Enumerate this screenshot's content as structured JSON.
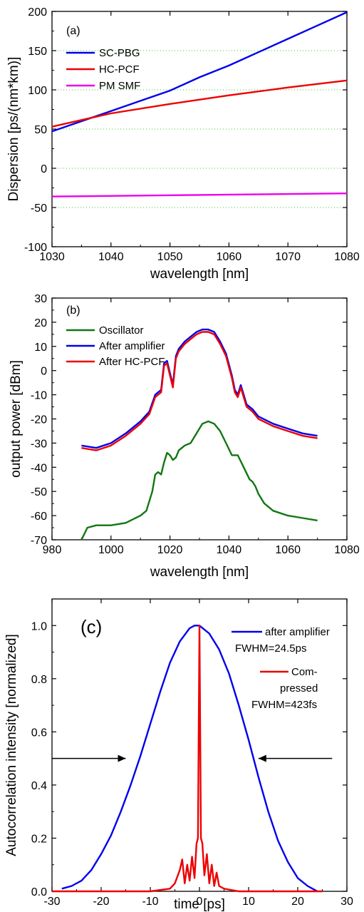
{
  "chart_data": [
    {
      "type": "line",
      "panel_label": "(a)",
      "xlabel": "wavelength [nm]",
      "ylabel": "Dispersion [ps/(nm*km)]",
      "xlim": [
        1030,
        1080
      ],
      "ylim": [
        -100,
        200
      ],
      "x_ticks": [
        1030,
        1040,
        1050,
        1060,
        1070,
        1080
      ],
      "y_ticks": [
        -100,
        -50,
        0,
        50,
        100,
        150,
        200
      ],
      "grid": "dotted green horizontal lines at -50, 0, 50, 100, 150",
      "legend_position": "upper-left",
      "series": [
        {
          "name": "SC-PBG",
          "color": "#0000ee",
          "x": [
            1030,
            1035,
            1040,
            1045,
            1050,
            1055,
            1060,
            1065,
            1070,
            1075,
            1080
          ],
          "y": [
            47,
            60,
            73,
            86,
            99,
            116,
            131,
            148,
            165,
            182,
            199
          ]
        },
        {
          "name": "HC-PCF",
          "color": "#ee0000",
          "x": [
            1030,
            1040,
            1050,
            1060,
            1070,
            1080
          ],
          "y": [
            53,
            70,
            82,
            93,
            103,
            112
          ]
        },
        {
          "name": "PM SMF",
          "color": "#ee00ee",
          "x": [
            1030,
            1080
          ],
          "y": [
            -36,
            -32
          ]
        }
      ]
    },
    {
      "type": "line",
      "panel_label": "(b)",
      "xlabel": "wavelength [nm]",
      "ylabel": "output power [dBm]",
      "xlim": [
        980,
        1080
      ],
      "ylim": [
        -70,
        30
      ],
      "x_ticks": [
        980,
        1000,
        1020,
        1040,
        1060,
        1080
      ],
      "y_ticks": [
        -70,
        -60,
        -50,
        -40,
        -30,
        -20,
        -10,
        0,
        10,
        20,
        30
      ],
      "legend_position": "upper-left",
      "series": [
        {
          "name": "Oscillator",
          "color": "#117711",
          "x": [
            990,
            992,
            995,
            1000,
            1005,
            1010,
            1012,
            1014,
            1015,
            1016,
            1017,
            1018,
            1019,
            1020,
            1021,
            1022,
            1023,
            1025,
            1027,
            1029,
            1031,
            1033,
            1035,
            1037,
            1039,
            1041,
            1043,
            1045,
            1047,
            1048,
            1049,
            1050,
            1052,
            1055,
            1060,
            1065,
            1070
          ],
          "y": [
            -70,
            -65,
            -64,
            -64,
            -63,
            -60,
            -58,
            -50,
            -43,
            -42,
            -43,
            -38,
            -34,
            -35,
            -37,
            -36,
            -33,
            -31,
            -30,
            -26,
            -22,
            -21,
            -22,
            -25,
            -30,
            -35,
            -35,
            -40,
            -45,
            -46,
            -48,
            -51,
            -55,
            -58,
            -60,
            -61,
            -62
          ]
        },
        {
          "name": "After amplifier",
          "color": "#0000ee",
          "x": [
            990,
            995,
            1000,
            1005,
            1010,
            1013,
            1015,
            1016,
            1017,
            1018,
            1019,
            1020,
            1021,
            1022,
            1023,
            1025,
            1027,
            1029,
            1031,
            1033,
            1035,
            1037,
            1039,
            1041,
            1042,
            1043,
            1044,
            1045,
            1046,
            1048,
            1050,
            1055,
            1060,
            1065,
            1070
          ],
          "y": [
            -31,
            -32,
            -30,
            -26,
            -21,
            -17,
            -10,
            -9,
            -8,
            3,
            4,
            -1,
            -6,
            6,
            9,
            12,
            14,
            16,
            17,
            17,
            16,
            12,
            7,
            -2,
            -8,
            -10,
            -6,
            -10,
            -14,
            -16,
            -19,
            -22,
            -24,
            -26,
            -27
          ]
        },
        {
          "name": "After HC-PCF",
          "color": "#ee0000",
          "x": [
            990,
            995,
            1000,
            1005,
            1010,
            1013,
            1015,
            1016,
            1017,
            1018,
            1019,
            1020,
            1021,
            1022,
            1023,
            1025,
            1027,
            1029,
            1031,
            1033,
            1035,
            1037,
            1039,
            1041,
            1042,
            1043,
            1044,
            1045,
            1046,
            1048,
            1050,
            1055,
            1060,
            1065,
            1070
          ],
          "y": [
            -32,
            -33,
            -31,
            -27,
            -22,
            -18,
            -11,
            -10,
            -9,
            2,
            3,
            -2,
            -7,
            5,
            8,
            11,
            13,
            15,
            16,
            16,
            15,
            11,
            6,
            -3,
            -9,
            -11,
            -7,
            -11,
            -15,
            -17,
            -20,
            -23,
            -25,
            -27,
            -28
          ]
        }
      ]
    },
    {
      "type": "line",
      "panel_label": "(c)",
      "xlabel": "time [ps]",
      "ylabel": "Autocorrelation intensity [normalized]",
      "xlim": [
        -30,
        30
      ],
      "ylim": [
        0,
        1.1
      ],
      "x_ticks": [
        -30,
        -20,
        -10,
        0,
        10,
        20,
        30
      ],
      "y_ticks": [
        0.0,
        0.2,
        0.4,
        0.6,
        0.8,
        1.0
      ],
      "y_tick_labels": [
        "0.0",
        "0.2",
        "0.4",
        "0.6",
        "0.8",
        "1.0"
      ],
      "legend_position": "upper-right",
      "series": [
        {
          "name": "after amplifier",
          "annotation": "FWHM=24.5ps",
          "color": "#0000ee",
          "x": [
            -28,
            -26,
            -24,
            -22,
            -20,
            -18,
            -16,
            -14,
            -12,
            -10,
            -8,
            -6,
            -4,
            -2,
            -1,
            0,
            2,
            4,
            6,
            8,
            10,
            12,
            14,
            16,
            18,
            20,
            22,
            23,
            24
          ],
          "y": [
            0.01,
            0.02,
            0.04,
            0.08,
            0.14,
            0.21,
            0.3,
            0.4,
            0.51,
            0.63,
            0.75,
            0.86,
            0.94,
            0.99,
            1.0,
            1.0,
            0.97,
            0.91,
            0.82,
            0.7,
            0.57,
            0.43,
            0.3,
            0.19,
            0.11,
            0.05,
            0.02,
            0.01,
            0.0
          ]
        },
        {
          "name": "Com-\npressed",
          "annotation": "FWHM=423fs",
          "color": "#ee0000",
          "x": [
            -30,
            -10,
            -6,
            -5,
            -4,
            -3.5,
            -3,
            -2.5,
            -2,
            -1.5,
            -1,
            -0.6,
            -0.3,
            0,
            0.3,
            0.6,
            1,
            1.5,
            2,
            2.5,
            3,
            3.5,
            4,
            5,
            8,
            22,
            25
          ],
          "y": [
            0.0,
            0.0,
            0.01,
            0.03,
            0.08,
            0.12,
            0.03,
            0.1,
            0.04,
            0.13,
            0.05,
            0.18,
            0.2,
            1.0,
            0.2,
            0.18,
            0.06,
            0.14,
            0.03,
            0.1,
            0.02,
            0.07,
            0.02,
            0.01,
            0.0,
            0.0,
            0.0
          ]
        }
      ],
      "annotations": [
        {
          "type": "arrow",
          "from": [
            -30,
            0.5
          ],
          "to": [
            -15,
            0.5
          ],
          "direction": "right"
        },
        {
          "type": "arrow",
          "from": [
            27,
            0.5
          ],
          "to": [
            12,
            0.5
          ],
          "direction": "left"
        }
      ]
    }
  ]
}
